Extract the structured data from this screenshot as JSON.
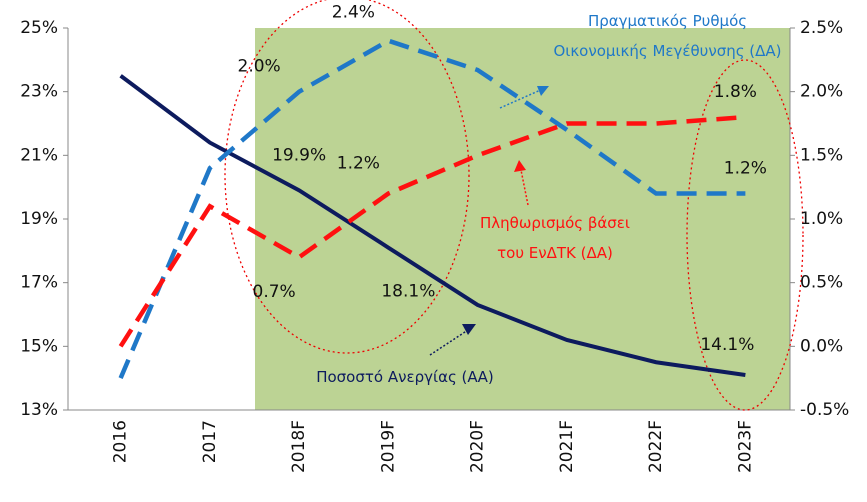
{
  "chart_data": {
    "type": "line",
    "categories": [
      "2016",
      "2017",
      "2018F",
      "2019F",
      "2020F",
      "2021F",
      "2022F",
      "2023F"
    ],
    "series": [
      {
        "name": "Ποσοστό Ανεργίας (ΑΑ)",
        "color": "#0d1b5e",
        "axis": "y",
        "dashed": false,
        "values": [
          23.5,
          21.4,
          19.9,
          18.1,
          16.3,
          15.2,
          14.5,
          14.1
        ],
        "value_labels": [
          null,
          null,
          "19.9%",
          "18.1%",
          null,
          null,
          null,
          "14.1%"
        ]
      },
      {
        "name": "Πραγματικός Ρυθμός Οικονομικής Μεγέθυνσης (ΔΑ)",
        "color": "#1f78c8",
        "axis": "y2",
        "dashed": true,
        "values": [
          -0.25,
          1.4,
          2.0,
          2.4,
          2.17,
          1.7,
          1.2,
          1.2
        ],
        "value_labels": [
          null,
          null,
          "2.0%",
          "2.4%",
          null,
          null,
          null,
          "1.2%"
        ]
      },
      {
        "name": "Πληθωρισμός βάσει του ΕνΔΤΚ (ΔΑ)",
        "color": "#ff1010",
        "axis": "y2",
        "dashed": true,
        "values": [
          0.0,
          1.1,
          0.7,
          1.2,
          1.5,
          1.75,
          1.75,
          1.8
        ],
        "value_labels": [
          null,
          null,
          "0.7%",
          "1.2%",
          null,
          null,
          null,
          "1.8%"
        ]
      }
    ],
    "ylim": [
      13,
      25
    ],
    "yticks": [
      {
        "value": 13,
        "label": "13%"
      },
      {
        "value": 15,
        "label": "15%"
      },
      {
        "value": 17,
        "label": "17%"
      },
      {
        "value": 19,
        "label": "19%"
      },
      {
        "value": 21,
        "label": "21%"
      },
      {
        "value": 23,
        "label": "23%"
      },
      {
        "value": 25,
        "label": "25%"
      }
    ],
    "y2lim": [
      -0.5,
      2.5
    ],
    "y2ticks": [
      {
        "value": -0.5,
        "label": "-0.5%"
      },
      {
        "value": 0.0,
        "label": "0.0%"
      },
      {
        "value": 0.5,
        "label": "0.5%"
      },
      {
        "value": 1.0,
        "label": "1.0%"
      },
      {
        "value": 1.5,
        "label": "1.5%"
      },
      {
        "value": 2.0,
        "label": "2.0%"
      },
      {
        "value": 2.5,
        "label": "2.5%"
      }
    ],
    "grid": false
  }
}
